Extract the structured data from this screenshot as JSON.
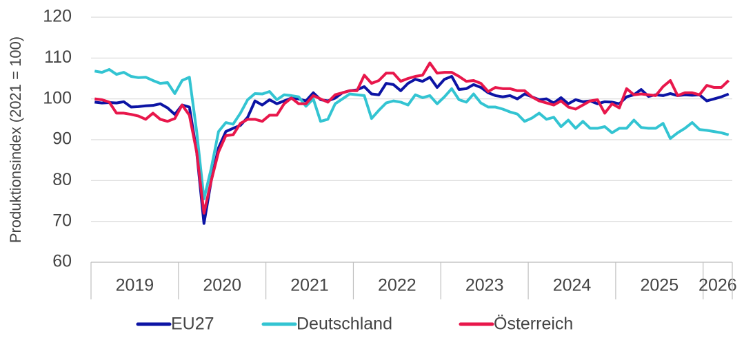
{
  "chart_data": {
    "type": "line",
    "ylabel": "Produktionsindex (2021 = 100)",
    "categories": [
      "2019",
      null,
      null,
      null,
      null,
      null,
      null,
      null,
      null,
      null,
      null,
      null,
      "2020",
      null,
      null,
      null,
      null,
      null,
      null,
      null,
      null,
      null,
      null,
      null,
      "2021",
      null,
      null,
      null,
      null,
      null,
      null,
      null,
      null,
      null,
      null,
      null,
      "2022",
      null,
      null,
      null,
      null,
      null,
      null,
      null,
      null,
      null,
      null,
      null,
      "2023",
      null,
      null,
      null,
      null,
      null,
      null,
      null,
      null,
      null,
      null,
      null,
      "2024",
      null,
      null,
      null,
      null,
      null,
      null,
      null,
      null,
      null,
      null,
      null,
      "2025",
      null,
      null,
      null,
      null,
      null,
      null,
      null,
      null,
      null,
      null,
      null,
      "2026",
      null,
      null,
      null
    ],
    "ylim": [
      60,
      120
    ],
    "yticks": [
      60,
      70,
      80,
      90,
      100,
      110,
      120
    ],
    "grid": true,
    "legend": "bottom",
    "series": [
      {
        "name": "EU27",
        "color": "#0c14a4",
        "values": [
          99.2,
          99.0,
          99.1,
          99.0,
          99.3,
          98.0,
          98.1,
          98.3,
          98.4,
          98.8,
          97.8,
          96.2,
          98.5,
          98.0,
          87.0,
          69.5,
          80.0,
          88.0,
          92.0,
          92.8,
          93.5,
          95.5,
          99.5,
          98.5,
          99.8,
          98.8,
          99.5,
          100.2,
          100.0,
          99.5,
          101.5,
          99.8,
          99.5,
          100.2,
          101.5,
          102.0,
          102.2,
          103.0,
          101.2,
          101.0,
          103.8,
          103.5,
          102.0,
          103.8,
          104.8,
          104.3,
          105.3,
          102.8,
          104.8,
          105.5,
          102.3,
          102.5,
          103.5,
          102.8,
          101.5,
          100.8,
          100.5,
          100.8,
          100.0,
          101.2,
          100.5,
          99.8,
          100.0,
          99.0,
          100.3,
          98.8,
          99.8,
          99.3,
          99.5,
          98.8,
          99.3,
          99.2,
          98.8,
          100.5,
          101.0,
          102.3,
          100.6,
          101.0,
          100.8,
          101.3,
          100.8,
          101.0,
          100.9,
          101.0,
          99.5,
          100.0,
          100.5,
          101.2
        ]
      },
      {
        "name": "Deutschland",
        "color": "#33c4d2",
        "values": [
          106.8,
          106.5,
          107.2,
          106.0,
          106.5,
          105.5,
          105.2,
          105.3,
          104.5,
          103.8,
          104.0,
          101.3,
          104.5,
          105.3,
          92.0,
          75.5,
          83.0,
          92.0,
          94.2,
          93.8,
          96.5,
          99.8,
          101.3,
          101.2,
          101.8,
          99.8,
          101.0,
          100.8,
          100.5,
          98.2,
          100.0,
          94.5,
          95.0,
          98.8,
          100.0,
          101.2,
          101.0,
          100.8,
          95.2,
          97.2,
          99.0,
          99.5,
          99.2,
          98.5,
          101.0,
          100.3,
          100.8,
          98.8,
          100.5,
          102.5,
          99.8,
          99.2,
          101.2,
          99.0,
          98.0,
          98.0,
          97.5,
          96.8,
          96.3,
          94.5,
          95.3,
          96.5,
          95.0,
          95.5,
          93.2,
          94.8,
          92.8,
          94.5,
          92.8,
          92.8,
          93.2,
          91.7,
          92.8,
          92.8,
          94.8,
          93.0,
          92.8,
          92.8,
          94.0,
          90.3,
          91.7,
          92.8,
          94.2,
          92.5,
          92.3,
          92.0,
          91.7,
          91.2
        ]
      },
      {
        "name": "Österreich",
        "color": "#e8174b",
        "values": [
          100.0,
          99.8,
          99.2,
          96.5,
          96.5,
          96.2,
          95.8,
          95.0,
          96.5,
          95.0,
          94.5,
          95.2,
          98.5,
          96.0,
          87.0,
          72.0,
          80.0,
          87.0,
          91.0,
          91.2,
          94.0,
          95.0,
          95.0,
          94.5,
          96.0,
          96.0,
          98.8,
          100.2,
          98.8,
          98.8,
          100.8,
          100.0,
          99.2,
          101.0,
          101.5,
          102.0,
          102.0,
          105.8,
          103.8,
          104.5,
          106.3,
          106.3,
          104.3,
          105.0,
          105.5,
          105.8,
          108.8,
          106.3,
          106.5,
          106.5,
          105.5,
          104.3,
          104.5,
          103.8,
          101.8,
          102.8,
          102.5,
          102.5,
          102.0,
          102.0,
          100.5,
          99.5,
          99.0,
          98.5,
          99.5,
          98.0,
          97.5,
          98.5,
          99.5,
          99.8,
          96.5,
          98.8,
          97.8,
          102.5,
          101.0,
          101.2,
          101.0,
          100.8,
          103.0,
          104.5,
          100.8,
          101.5,
          101.5,
          101.0,
          103.3,
          102.8,
          102.8,
          104.5
        ]
      }
    ]
  }
}
